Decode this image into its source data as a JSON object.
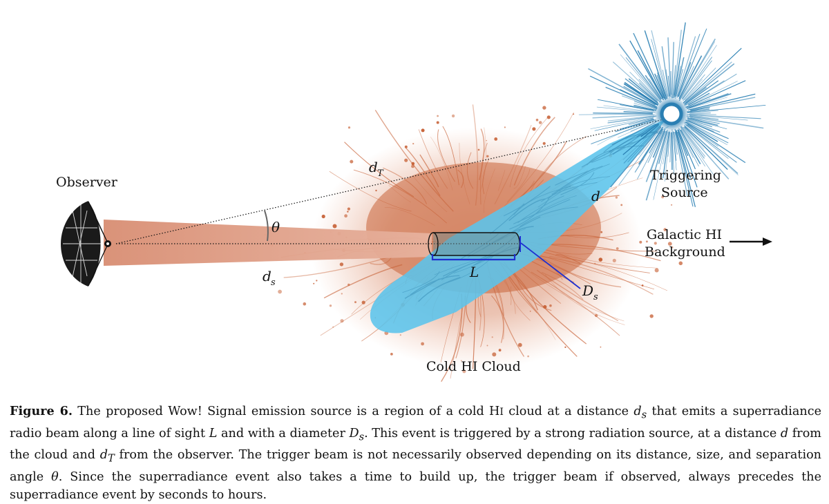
{
  "labels": {
    "observer": "Observer",
    "triggering_source_line1": "Triggering",
    "triggering_source_line2": "Source",
    "galactic_line1": "Galactic HI",
    "galactic_line2": "Background",
    "cold_cloud": "Cold HI Cloud",
    "d_T": "d",
    "d_T_sub": "T",
    "theta": "θ",
    "d": "d",
    "d_s": "d",
    "d_s_sub": "s",
    "L": "L",
    "D_s": "D",
    "D_s_sub": "s"
  },
  "caption": {
    "figure_label": "Figure 6.",
    "seg1": " The proposed Wow! Signal emission source is a region of a cold H",
    "seg1_smallcaps": "I",
    "seg2": " cloud at a distance ",
    "v_ds": "d",
    "v_ds_sub": "s",
    "seg3": " that emits a superradiance radio beam along a line of sight ",
    "v_L": "L",
    "seg4": " and with a diameter ",
    "v_Ds": "D",
    "v_Ds_sub": "s",
    "seg5": ". This event is triggered by a strong radiation source, at a distance ",
    "v_d": "d",
    "seg6": " from the cloud and ",
    "v_dT": "d",
    "v_dT_sub": "T",
    "seg7": " from the observer. The trigger beam is not necessarily observed depending on its distance, size, and separation angle ",
    "v_theta": "θ",
    "seg8": ". Since the superradiance event also takes a time to build up, the trigger beam if observed, always precedes the superradiance event by seconds to hours."
  },
  "colors": {
    "cloud": "#c8643a",
    "trigger_beam": "#5bc4ec",
    "source": "#2a7fb3",
    "obs_beam": "#d9937a",
    "cylinder_bracket": "#1e2fd0"
  }
}
